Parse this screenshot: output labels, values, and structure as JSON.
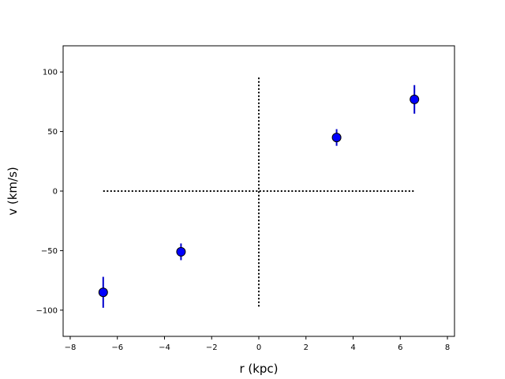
{
  "chart_data": {
    "type": "scatter",
    "title": "",
    "xlabel": "r (kpc)",
    "ylabel": "v (km/s)",
    "xlim": [
      -8.3,
      8.3
    ],
    "ylim": [
      -122,
      122
    ],
    "xticks": [
      -8,
      -6,
      -4,
      -2,
      0,
      2,
      4,
      6,
      8
    ],
    "xtick_labels": [
      "−8",
      "−6",
      "−4",
      "−2",
      "0",
      "2",
      "4",
      "6",
      "8"
    ],
    "yticks": [
      -100,
      -50,
      0,
      50,
      100
    ],
    "ytick_labels": [
      "−100",
      "−50",
      "0",
      "50",
      "100"
    ],
    "grid": false,
    "legend": false,
    "series": [
      {
        "marker_color": "#0000ff",
        "edge_color": "#000000",
        "errorbar_color": "#0000cc",
        "points": [
          {
            "x": -6.6,
            "y": -85,
            "yerr": 13
          },
          {
            "x": -3.3,
            "y": -51,
            "yerr": 7
          },
          {
            "x": 3.3,
            "y": 45,
            "yerr": 7
          },
          {
            "x": 6.6,
            "y": 77,
            "yerr": 12
          }
        ]
      }
    ],
    "reference_lines": [
      {
        "orientation": "horizontal",
        "y": 0,
        "x_from": -6.6,
        "x_to": 6.6,
        "style": "dotted",
        "color": "#000000"
      },
      {
        "orientation": "vertical",
        "x": 0,
        "y_from": -97,
        "y_to": 97,
        "style": "dotted",
        "color": "#000000"
      }
    ]
  }
}
